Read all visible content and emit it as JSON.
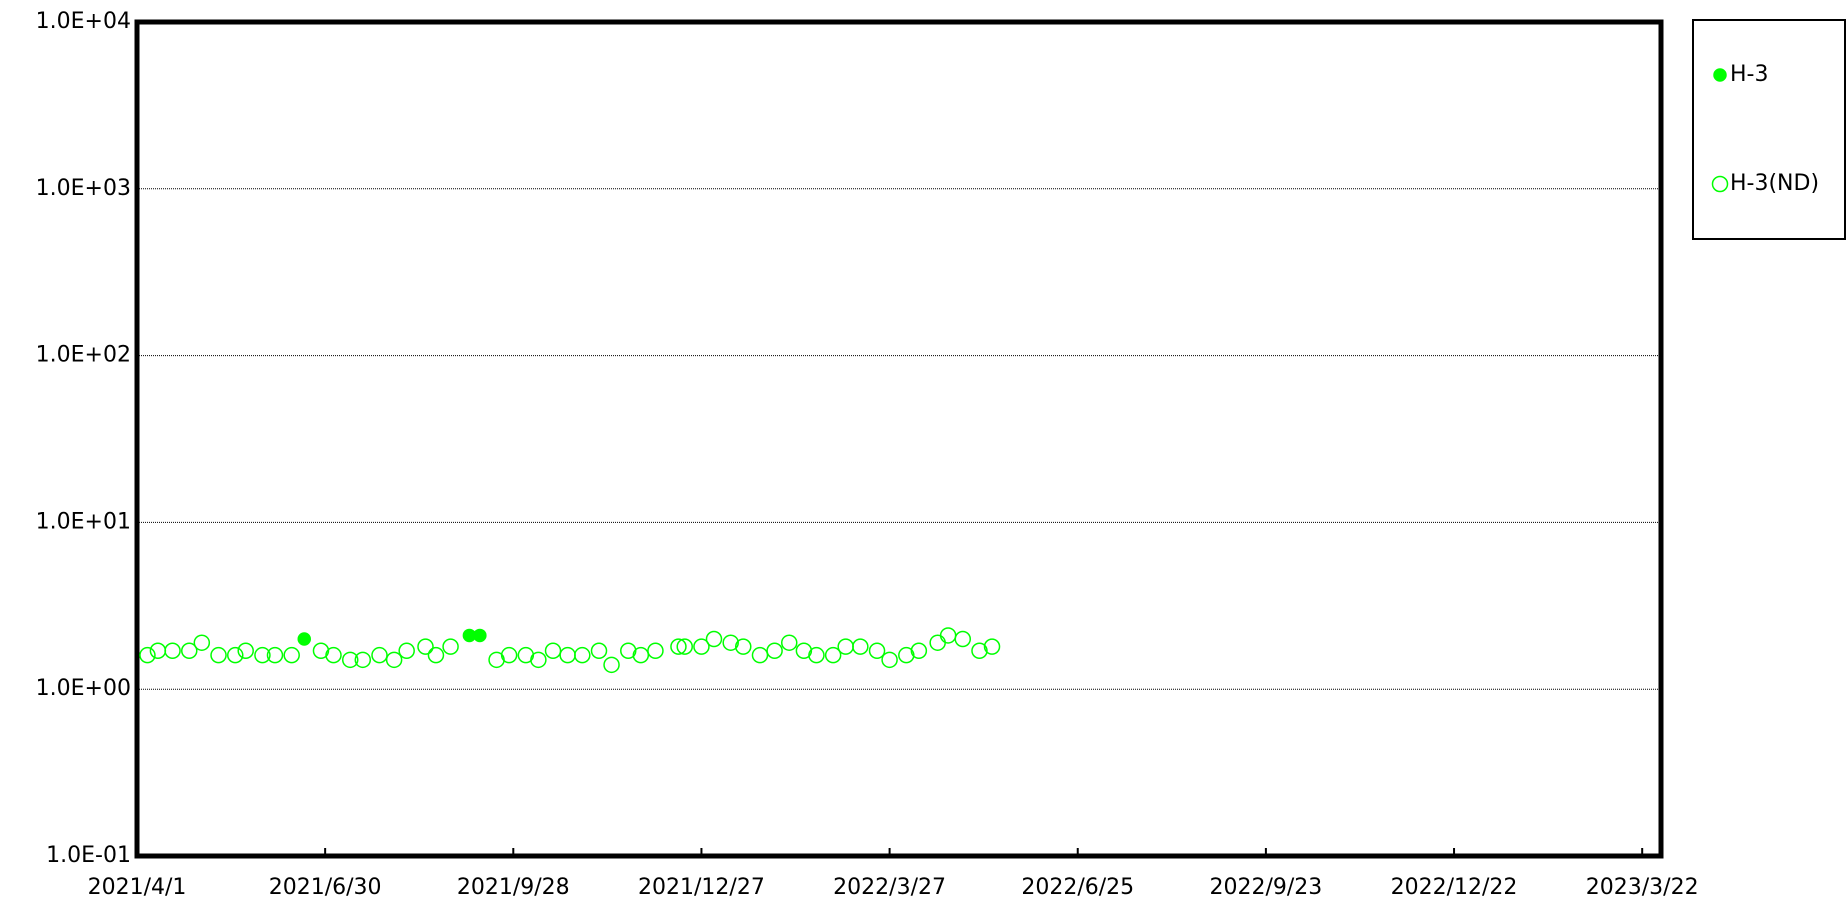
{
  "chart_data": {
    "type": "scatter",
    "xlim": [
      "2021/4/1",
      "2023/3/31"
    ],
    "xticks": [
      "2021/4/1",
      "2021/6/30",
      "2021/9/28",
      "2021/12/27",
      "2022/3/27",
      "2022/6/25",
      "2022/9/23",
      "2022/12/22",
      "2023/3/22"
    ],
    "ylim": [
      0.1,
      10000
    ],
    "log_y": true,
    "grid": true,
    "legend": "outside right top",
    "yticks": [
      {
        "value": 0.1,
        "label": "1.0E-01"
      },
      {
        "value": 1,
        "label": "1.0E+00"
      },
      {
        "value": 10,
        "label": "1.0E+01"
      },
      {
        "value": 100,
        "label": "1.0E+02"
      },
      {
        "value": 1000,
        "label": "1.0E+03"
      },
      {
        "value": 10000,
        "label": "1.0E+04"
      }
    ],
    "series": [
      {
        "name": "H-3",
        "color": "#00ff00",
        "filled": true,
        "x": [
          "2021/6/20",
          "2021/9/7",
          "2021/9/12"
        ],
        "values": [
          2.0,
          2.1,
          2.1
        ]
      },
      {
        "name": "H-3(ND)",
        "color": "#00ff00",
        "filled": false,
        "x": [
          "2021/4/6",
          "2021/4/11",
          "2021/4/18",
          "2021/4/26",
          "2021/5/2",
          "2021/5/10",
          "2021/5/18",
          "2021/5/23",
          "2021/5/31",
          "2021/6/6",
          "2021/6/14",
          "2021/6/28",
          "2021/7/4",
          "2021/7/12",
          "2021/7/18",
          "2021/7/26",
          "2021/8/2",
          "2021/8/8",
          "2021/8/17",
          "2021/8/22",
          "2021/8/29",
          "2021/9/20",
          "2021/9/26",
          "2021/10/4",
          "2021/10/10",
          "2021/10/17",
          "2021/10/24",
          "2021/10/31",
          "2021/11/8",
          "2021/11/14",
          "2021/11/22",
          "2021/11/28",
          "2021/12/5",
          "2021/12/16",
          "2021/12/19",
          "2021/12/27",
          "2022/1/2",
          "2022/1/10",
          "2022/1/16",
          "2022/1/24",
          "2022/1/31",
          "2022/2/7",
          "2022/2/14",
          "2022/2/20",
          "2022/2/28",
          "2022/3/6",
          "2022/3/13",
          "2022/3/21",
          "2022/3/27",
          "2022/4/4",
          "2022/4/10",
          "2022/4/19",
          "2022/4/24",
          "2022/5/1",
          "2022/5/9",
          "2022/5/15"
        ],
        "values": [
          1.6,
          1.7,
          1.7,
          1.7,
          1.9,
          1.6,
          1.6,
          1.7,
          1.6,
          1.6,
          1.6,
          1.7,
          1.6,
          1.5,
          1.5,
          1.6,
          1.5,
          1.7,
          1.8,
          1.6,
          1.8,
          1.5,
          1.6,
          1.6,
          1.5,
          1.7,
          1.6,
          1.6,
          1.7,
          1.4,
          1.7,
          1.6,
          1.7,
          1.8,
          1.8,
          1.8,
          2.0,
          1.9,
          1.8,
          1.6,
          1.7,
          1.9,
          1.7,
          1.6,
          1.6,
          1.8,
          1.8,
          1.7,
          1.5,
          1.6,
          1.7,
          1.9,
          2.1,
          2.0,
          1.7,
          1.8
        ]
      }
    ]
  }
}
